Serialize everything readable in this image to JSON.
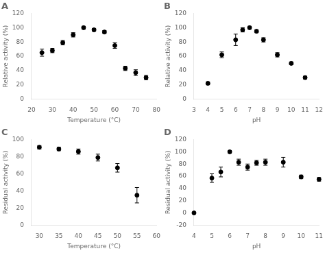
{
  "chart_data": [
    {
      "type": "scatter",
      "title": "A",
      "x": [
        25,
        30,
        35,
        40,
        45,
        50,
        55,
        60,
        65,
        70,
        75
      ],
      "values": [
        65,
        68,
        79,
        90,
        100,
        97,
        94,
        75,
        43,
        37,
        30
      ],
      "yerr": [
        5,
        3,
        3,
        3,
        2,
        2,
        2,
        4,
        3,
        4,
        3
      ],
      "xlabel": "Temperature (°C)",
      "ylabel": "Relative activity (%)",
      "xlim": [
        20,
        80
      ],
      "ylim": [
        0,
        120
      ],
      "xticks": [
        20,
        30,
        40,
        50,
        60,
        70,
        80
      ],
      "yticks": [
        0,
        20,
        40,
        60,
        80,
        100,
        120
      ],
      "color": "black",
      "marker": "circle",
      "grid": false
    },
    {
      "type": "scatter",
      "title": "B",
      "x": [
        4,
        5,
        6,
        6.5,
        7,
        7.5,
        8,
        9,
        10,
        11
      ],
      "values": [
        22,
        62,
        83,
        97,
        100,
        95,
        83,
        62,
        50,
        30
      ],
      "yerr": [
        2,
        4,
        8,
        3,
        2,
        2,
        3,
        3,
        2,
        2
      ],
      "xlabel": "pH",
      "ylabel": "Relative activity (%)",
      "xlim": [
        3,
        12
      ],
      "ylim": [
        0,
        120
      ],
      "xticks": [
        3,
        4,
        5,
        6,
        7,
        8,
        9,
        10,
        11,
        12
      ],
      "yticks": [
        0,
        20,
        40,
        60,
        80,
        100,
        120
      ],
      "color": "black",
      "marker": "circle",
      "grid": false
    },
    {
      "type": "scatter",
      "title": "C",
      "x": [
        30,
        35,
        40,
        45,
        50,
        55
      ],
      "values": [
        91,
        89,
        86,
        79,
        67,
        35
      ],
      "yerr": [
        2,
        2,
        3,
        4,
        5,
        9
      ],
      "xlabel": "Temperature (°C)",
      "ylabel": "Residual activity (%)",
      "xlim": [
        28,
        60
      ],
      "ylim": [
        0,
        100
      ],
      "xticks": [
        30,
        35,
        40,
        45,
        50,
        55,
        60
      ],
      "yticks": [
        0,
        20,
        40,
        60,
        80,
        100
      ],
      "color": "black",
      "marker": "circle",
      "grid": false
    },
    {
      "type": "scatter",
      "title": "D",
      "x": [
        4,
        5,
        5.5,
        6,
        6.5,
        7,
        7.5,
        8,
        9,
        10,
        11
      ],
      "values": [
        0,
        57,
        67,
        100,
        83,
        75,
        82,
        83,
        83,
        59,
        55
      ],
      "yerr": [
        1,
        7,
        8,
        2,
        5,
        5,
        4,
        5,
        8,
        3,
        3
      ],
      "xlabel": "pH",
      "ylabel": "Residual activity (%)",
      "xlim": [
        4,
        11
      ],
      "ylim": [
        -20,
        120
      ],
      "xticks": [
        4,
        5,
        6,
        7,
        8,
        9,
        10,
        11
      ],
      "yticks": [
        -20,
        0,
        20,
        40,
        60,
        80,
        100,
        120
      ],
      "color": "black",
      "marker": "circle",
      "grid": false
    }
  ]
}
